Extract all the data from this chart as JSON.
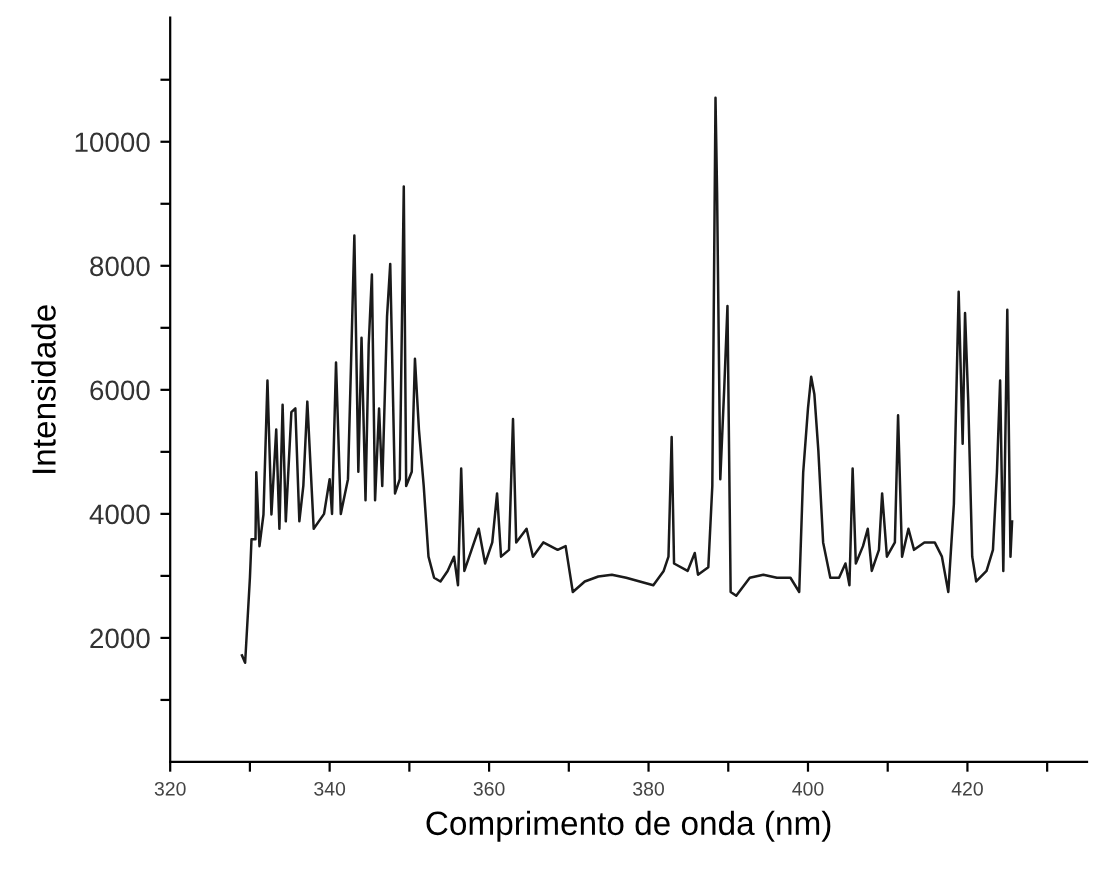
{
  "chart_data": {
    "type": "line",
    "xlabel": "Comprimento de onda (nm)",
    "ylabel": "Intensidade",
    "xlim": [
      320,
      435
    ],
    "ylim": [
      0,
      12000
    ],
    "xticks": [
      320,
      {
        "value": 330,
        "label": null
      },
      340,
      {
        "value": 350,
        "label": null
      },
      360,
      {
        "value": 370,
        "label": null
      },
      380,
      {
        "value": 390,
        "label": null
      },
      400,
      {
        "value": 410,
        "label": null
      },
      420,
      {
        "value": 430,
        "label": null
      }
    ],
    "yticks": [
      {
        "value": 1000,
        "label": null
      },
      2000,
      {
        "value": 3000,
        "label": null
      },
      4000,
      {
        "value": 5000,
        "label": null
      },
      6000,
      {
        "value": 7000,
        "label": null
      },
      8000,
      {
        "value": 9000,
        "label": null
      },
      10000,
      {
        "value": 11000,
        "label": null
      }
    ],
    "grid": false,
    "legend": false,
    "marker": "none",
    "line_style": "solid",
    "series": [
      {
        "color": "#1a1a1a",
        "x": [
          329.0,
          329.4,
          330.0,
          330.2,
          330.7,
          330.8,
          331.2,
          331.7,
          332.2,
          332.7,
          333.3,
          333.7,
          334.1,
          334.5,
          335.2,
          335.7,
          336.2,
          336.7,
          337.2,
          338.0,
          339.3,
          340.0,
          340.3,
          340.8,
          341.4,
          342.3,
          342.7,
          343.1,
          343.6,
          344.0,
          344.5,
          344.9,
          345.3,
          345.7,
          346.2,
          346.6,
          347.2,
          347.6,
          348.2,
          348.8,
          349.3,
          349.6,
          350.3,
          350.7,
          351.2,
          351.8,
          352.4,
          353.1,
          353.9,
          354.8,
          355.6,
          356.1,
          356.5,
          356.9,
          357.8,
          358.7,
          359.5,
          360.4,
          361.0,
          361.5,
          362.5,
          363.0,
          363.4,
          364.7,
          365.5,
          366.8,
          368.6,
          369.6,
          370.5,
          372.0,
          373.7,
          375.4,
          377.2,
          378.9,
          380.6,
          381.9,
          382.5,
          382.9,
          383.2,
          384.9,
          385.8,
          386.2,
          387.5,
          388.0,
          388.4,
          388.6,
          389.0,
          389.5,
          389.9,
          390.3,
          391.0,
          392.7,
          394.4,
          396.1,
          397.8,
          398.9,
          399.4,
          400.0,
          400.4,
          400.8,
          401.3,
          401.9,
          402.8,
          403.9,
          404.7,
          405.2,
          405.6,
          406.0,
          406.9,
          407.5,
          408.0,
          408.9,
          409.3,
          409.9,
          410.9,
          411.3,
          411.8,
          412.6,
          413.3,
          414.6,
          415.9,
          416.8,
          417.6,
          418.3,
          418.9,
          419.4,
          419.7,
          420.1,
          420.6,
          421.1,
          422.4,
          423.2,
          423.7,
          424.1,
          424.5,
          425.0,
          425.4,
          425.6
        ],
        "values": [
          1720,
          1600,
          2970,
          3590,
          3590,
          4670,
          3480,
          3990,
          6150,
          3990,
          5360,
          3760,
          5760,
          3880,
          5640,
          5700,
          3880,
          4450,
          5810,
          3760,
          4000,
          4560,
          4000,
          6440,
          4000,
          4560,
          6500,
          8490,
          4680,
          6840,
          4220,
          6730,
          7860,
          4220,
          5700,
          4450,
          7180,
          8030,
          4330,
          4560,
          9280,
          4450,
          4680,
          6500,
          5360,
          4450,
          3310,
          2970,
          2910,
          3080,
          3310,
          2850,
          4730,
          3080,
          3420,
          3760,
          3200,
          3540,
          4330,
          3310,
          3420,
          5530,
          3540,
          3760,
          3310,
          3540,
          3420,
          3480,
          2740,
          2910,
          2990,
          3020,
          2970,
          2910,
          2850,
          3080,
          3310,
          5240,
          3200,
          3080,
          3370,
          3020,
          3140,
          4450,
          10710,
          9170,
          4560,
          6040,
          7350,
          2740,
          2680,
          2970,
          3020,
          2970,
          2970,
          2740,
          4670,
          5700,
          6210,
          5930,
          5020,
          3540,
          2970,
          2970,
          3200,
          2850,
          4730,
          3200,
          3480,
          3760,
          3080,
          3420,
          4330,
          3310,
          3540,
          5590,
          3310,
          3760,
          3420,
          3540,
          3540,
          3310,
          2740,
          4160,
          7580,
          5130,
          7240,
          5820,
          3310,
          2910,
          3080,
          3420,
          4670,
          6150,
          3080,
          7290,
          3310,
          3880
        ]
      }
    ]
  }
}
